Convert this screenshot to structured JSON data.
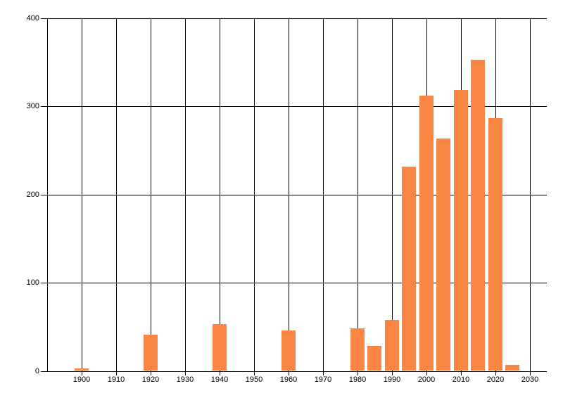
{
  "page": {
    "background_color": "#ffffff",
    "text_color": "#000000"
  },
  "chart_data": {
    "type": "bar",
    "title": "",
    "xlabel": "",
    "ylabel": "",
    "x": [
      1900,
      1920,
      1940,
      1960,
      1980,
      1985,
      1990,
      1995,
      2000,
      2005,
      2010,
      2015,
      2020,
      2025
    ],
    "values": [
      3,
      41,
      53,
      46,
      48,
      28,
      58,
      232,
      312,
      264,
      319,
      353,
      287,
      7
    ],
    "bar_width_x": 4,
    "bar_color": "#fb8543",
    "grid": true,
    "grid_color": "#000000",
    "legend_position": "none",
    "xlim": [
      1890,
      2035
    ],
    "ylim": [
      0,
      400
    ],
    "x_ticks": [
      1900,
      1910,
      1920,
      1930,
      1940,
      1950,
      1960,
      1970,
      1980,
      1990,
      2000,
      2010,
      2020,
      2030
    ],
    "y_ticks": [
      0,
      100,
      200,
      300,
      400
    ]
  }
}
